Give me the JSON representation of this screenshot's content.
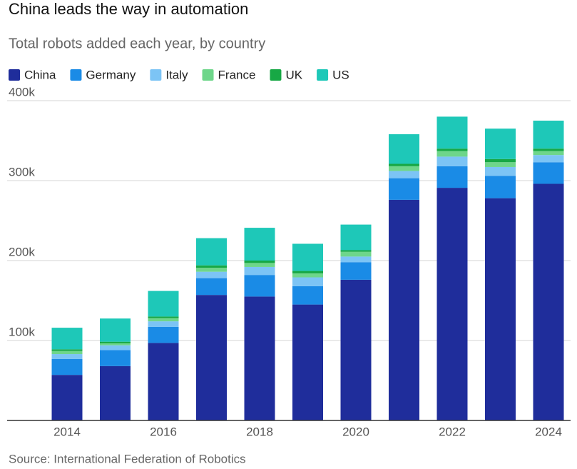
{
  "chart_data": {
    "type": "stacked-bar",
    "title": "China leads the way in automation",
    "subtitle": "Total robots added each year, by country",
    "source": "Source: International Federation of Robotics",
    "categories": [
      "2014",
      null,
      "2016",
      null,
      "2018",
      null,
      "2020",
      null,
      "2022",
      null,
      "2024"
    ],
    "series": [
      {
        "name": "China",
        "color": "#1f2d9b",
        "values": [
          57000,
          68000,
          97000,
          157000,
          155000,
          145000,
          176000,
          276000,
          291000,
          278000,
          296000
        ]
      },
      {
        "name": "Germany",
        "color": "#1a8be6",
        "values": [
          20000,
          20000,
          20000,
          21000,
          27000,
          23000,
          22000,
          27000,
          27000,
          28000,
          27000
        ]
      },
      {
        "name": "Italy",
        "color": "#7cc4f5",
        "values": [
          6000,
          6000,
          7000,
          8000,
          10000,
          11000,
          7000,
          9000,
          12000,
          11000,
          9000
        ]
      },
      {
        "name": "France",
        "color": "#6ed68a",
        "values": [
          4000,
          2500,
          4000,
          5000,
          5000,
          5000,
          6000,
          6000,
          7000,
          6000,
          5000
        ]
      },
      {
        "name": "UK",
        "color": "#17a845",
        "values": [
          2000,
          2000,
          2000,
          3000,
          3000,
          3000,
          2000,
          3000,
          3000,
          4000,
          3000
        ]
      },
      {
        "name": "US",
        "color": "#1ec8b8",
        "values": [
          27000,
          29000,
          32000,
          34000,
          41000,
          34000,
          32000,
          37000,
          40000,
          38000,
          35000
        ]
      }
    ],
    "ylim": [
      0,
      400000
    ],
    "yticks": [
      {
        "value": 100000,
        "label": "100k"
      },
      {
        "value": 200000,
        "label": "200k"
      },
      {
        "value": 300000,
        "label": "300k"
      },
      {
        "value": 400000,
        "label": "400k"
      }
    ],
    "grid": true
  }
}
